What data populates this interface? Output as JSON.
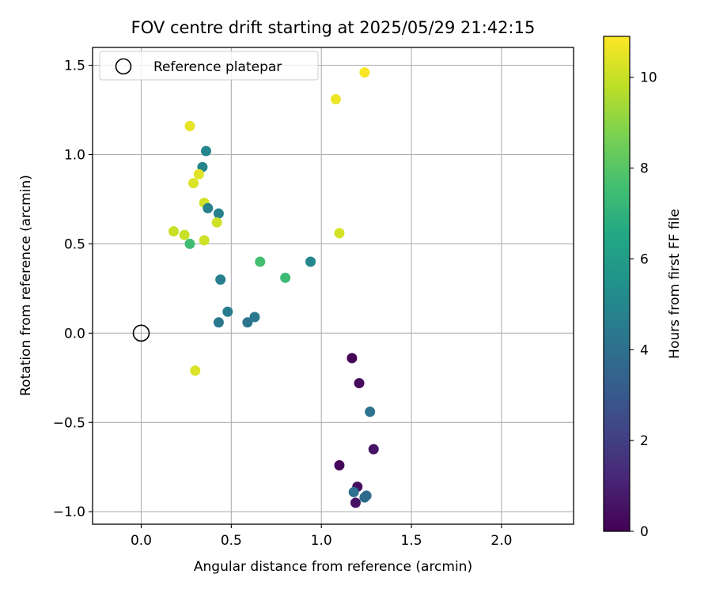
{
  "chart_data": {
    "type": "scatter",
    "title": "FOV centre drift starting at 2025/05/29 21:42:15",
    "xlabel": "Angular distance from reference (arcmin)",
    "ylabel": "Rotation from reference (arcmin)",
    "xlim": [
      -0.27,
      2.4
    ],
    "ylim": [
      -1.07,
      1.6
    ],
    "xticks": [
      0.0,
      0.5,
      1.0,
      1.5,
      2.0
    ],
    "xtick_labels": [
      "0.0",
      "0.5",
      "1.0",
      "1.5",
      "2.0"
    ],
    "yticks": [
      -1.0,
      -0.5,
      0.0,
      0.5,
      1.0,
      1.5
    ],
    "ytick_labels": [
      "−1.0",
      "−0.5",
      "0.0",
      "0.5",
      "1.0",
      "1.5"
    ],
    "grid": true,
    "legend": {
      "position": "top-left",
      "entries": [
        "Reference platepar"
      ]
    },
    "reference_point": {
      "name": "Reference platepar",
      "x": 0.0,
      "y": 0.0
    },
    "colorbar": {
      "label": "Hours from first FF file",
      "colormap": "viridis",
      "range": [
        0,
        10.9
      ],
      "ticks": [
        0,
        2,
        4,
        6,
        8,
        10
      ],
      "tick_labels": [
        "0",
        "2",
        "4",
        "6",
        "8",
        "10"
      ]
    },
    "points": [
      {
        "x": 1.24,
        "y": 1.46,
        "c": 10.8
      },
      {
        "x": 1.08,
        "y": 1.31,
        "c": 10.6
      },
      {
        "x": 0.27,
        "y": 1.16,
        "c": 10.5
      },
      {
        "x": 0.36,
        "y": 1.02,
        "c": 5.0
      },
      {
        "x": 0.34,
        "y": 0.93,
        "c": 4.9
      },
      {
        "x": 0.32,
        "y": 0.89,
        "c": 10.4
      },
      {
        "x": 0.29,
        "y": 0.84,
        "c": 10.3
      },
      {
        "x": 0.35,
        "y": 0.73,
        "c": 10.2
      },
      {
        "x": 0.37,
        "y": 0.7,
        "c": 4.8
      },
      {
        "x": 0.43,
        "y": 0.67,
        "c": 4.7
      },
      {
        "x": 0.42,
        "y": 0.62,
        "c": 10.1
      },
      {
        "x": 0.18,
        "y": 0.57,
        "c": 10.0
      },
      {
        "x": 0.24,
        "y": 0.55,
        "c": 10.0
      },
      {
        "x": 1.1,
        "y": 0.56,
        "c": 10.2
      },
      {
        "x": 0.35,
        "y": 0.52,
        "c": 10.1
      },
      {
        "x": 0.27,
        "y": 0.5,
        "c": 7.5
      },
      {
        "x": 0.66,
        "y": 0.4,
        "c": 7.6
      },
      {
        "x": 0.94,
        "y": 0.4,
        "c": 5.0
      },
      {
        "x": 0.8,
        "y": 0.31,
        "c": 7.4
      },
      {
        "x": 0.44,
        "y": 0.3,
        "c": 4.6
      },
      {
        "x": 0.48,
        "y": 0.12,
        "c": 4.5
      },
      {
        "x": 0.63,
        "y": 0.09,
        "c": 4.4
      },
      {
        "x": 0.43,
        "y": 0.06,
        "c": 4.3
      },
      {
        "x": 0.59,
        "y": 0.06,
        "c": 4.2
      },
      {
        "x": 0.3,
        "y": -0.21,
        "c": 10.3
      },
      {
        "x": 1.17,
        "y": -0.14,
        "c": 0.1
      },
      {
        "x": 1.21,
        "y": -0.28,
        "c": 0.3
      },
      {
        "x": 1.27,
        "y": -0.44,
        "c": 4.1
      },
      {
        "x": 1.29,
        "y": -0.65,
        "c": 0.6
      },
      {
        "x": 1.1,
        "y": -0.74,
        "c": 0.2
      },
      {
        "x": 1.2,
        "y": -0.86,
        "c": 0.4
      },
      {
        "x": 1.18,
        "y": -0.89,
        "c": 4.0
      },
      {
        "x": 1.24,
        "y": -0.92,
        "c": 3.9
      },
      {
        "x": 1.25,
        "y": -0.91,
        "c": 3.8
      },
      {
        "x": 1.19,
        "y": -0.95,
        "c": 0.5
      }
    ]
  }
}
